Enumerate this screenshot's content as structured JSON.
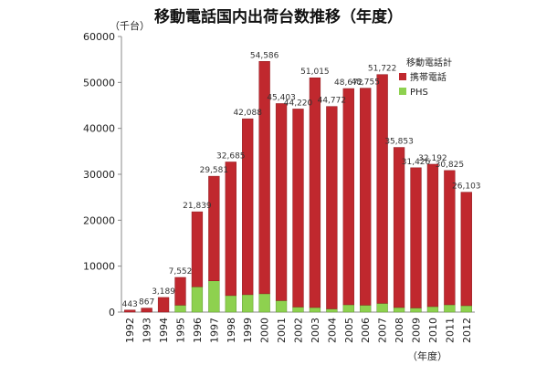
{
  "chart_data": {
    "type": "bar",
    "title": "移動電話国内出荷台数推移（年度）",
    "ylabel": "（千台）",
    "xlabel": "（年度）",
    "ylim": [
      0,
      60000
    ],
    "yticks": [
      0,
      10000,
      20000,
      30000,
      40000,
      50000,
      60000
    ],
    "grid": false,
    "stacked": true,
    "legend": {
      "title": "移動電話計",
      "position": "right"
    },
    "categories": [
      "1992",
      "1993",
      "1994",
      "1995",
      "1996",
      "1997",
      "1998",
      "1999",
      "2000",
      "2001",
      "2002",
      "2003",
      "2004",
      "2005",
      "2006",
      "2007",
      "2008",
      "2009",
      "2010",
      "2011",
      "2012"
    ],
    "series": [
      {
        "name": "PHS",
        "color": "#8ed14f",
        "values": [
          0,
          0,
          0,
          1500,
          5500,
          6800,
          3600,
          3800,
          4000,
          2500,
          1100,
          1000,
          700,
          1600,
          1500,
          1900,
          1000,
          900,
          1200,
          1600,
          1400
        ]
      },
      {
        "name": "携帯電話",
        "color": "#c0282e",
        "values": [
          443,
          867,
          3189,
          6052,
          16339,
          22781,
          29085,
          38288,
          50586,
          42903,
          43120,
          50015,
          44072,
          47072,
          47255,
          49822,
          34853,
          30526,
          30992,
          29225,
          24703
        ]
      }
    ],
    "totals": [
      "443",
      "867",
      "3,189",
      "7,552",
      "21,839",
      "29,581",
      "32,685",
      "42,088",
      "54,586",
      "45,403",
      "44,220",
      "51,015",
      "44,772",
      "48,672",
      "48,755",
      "51,722",
      "35,853",
      "31,426",
      "32,192",
      "30,825",
      "26,103"
    ]
  }
}
